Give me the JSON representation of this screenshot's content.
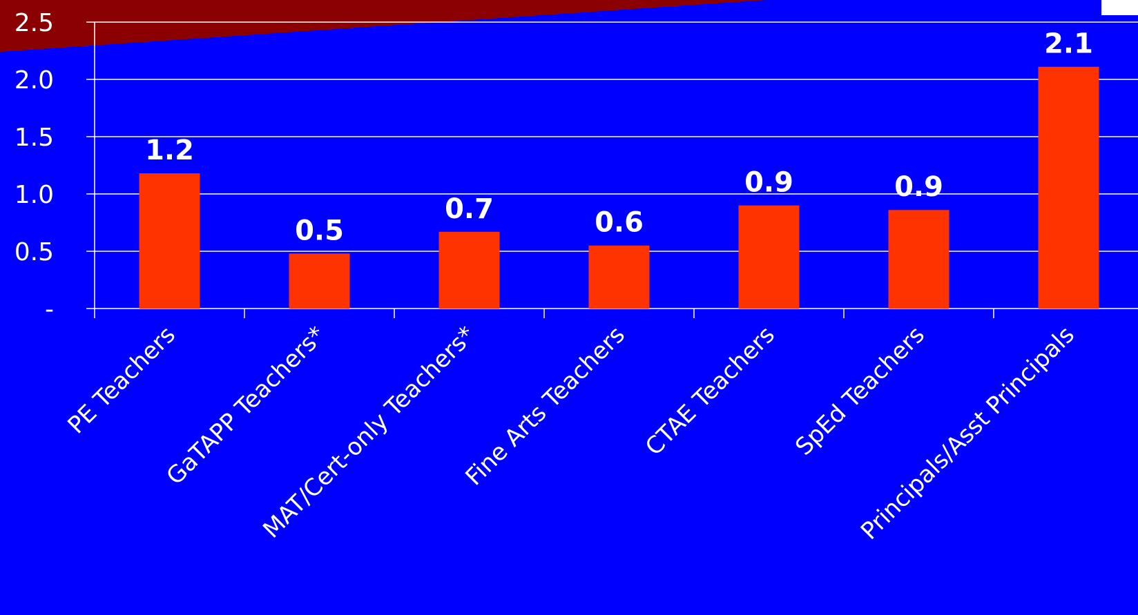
{
  "colors": {
    "background": "#0000ff",
    "bar": "#ff3300",
    "gridline": "#ffffff",
    "text": "#ffffff",
    "accent_banner": "#8b0000",
    "corner_box": "#ffffff"
  },
  "chart_data": {
    "type": "bar",
    "categories": [
      "PE Teachers",
      "GaTAPP Teachers*",
      "MAT/Cert-only Teachers*",
      "Fine Arts Teachers",
      "CTAE Teachers",
      "SpEd Teachers",
      "Principals/Asst Principals"
    ],
    "values": [
      1.18,
      0.48,
      0.67,
      0.55,
      0.9,
      0.86,
      2.11
    ],
    "data_labels": [
      "1.2",
      "0.5",
      "0.7",
      "0.6",
      "0.9",
      "0.9",
      "2.1"
    ],
    "ylim": [
      0,
      2.5
    ],
    "yticks": [
      0,
      0.5,
      1.0,
      1.5,
      2.0,
      2.5
    ],
    "ytick_labels": [
      "-",
      "0.5",
      "1.0",
      "1.5",
      "2.0",
      "2.5"
    ],
    "grid": true,
    "legend": "none"
  }
}
